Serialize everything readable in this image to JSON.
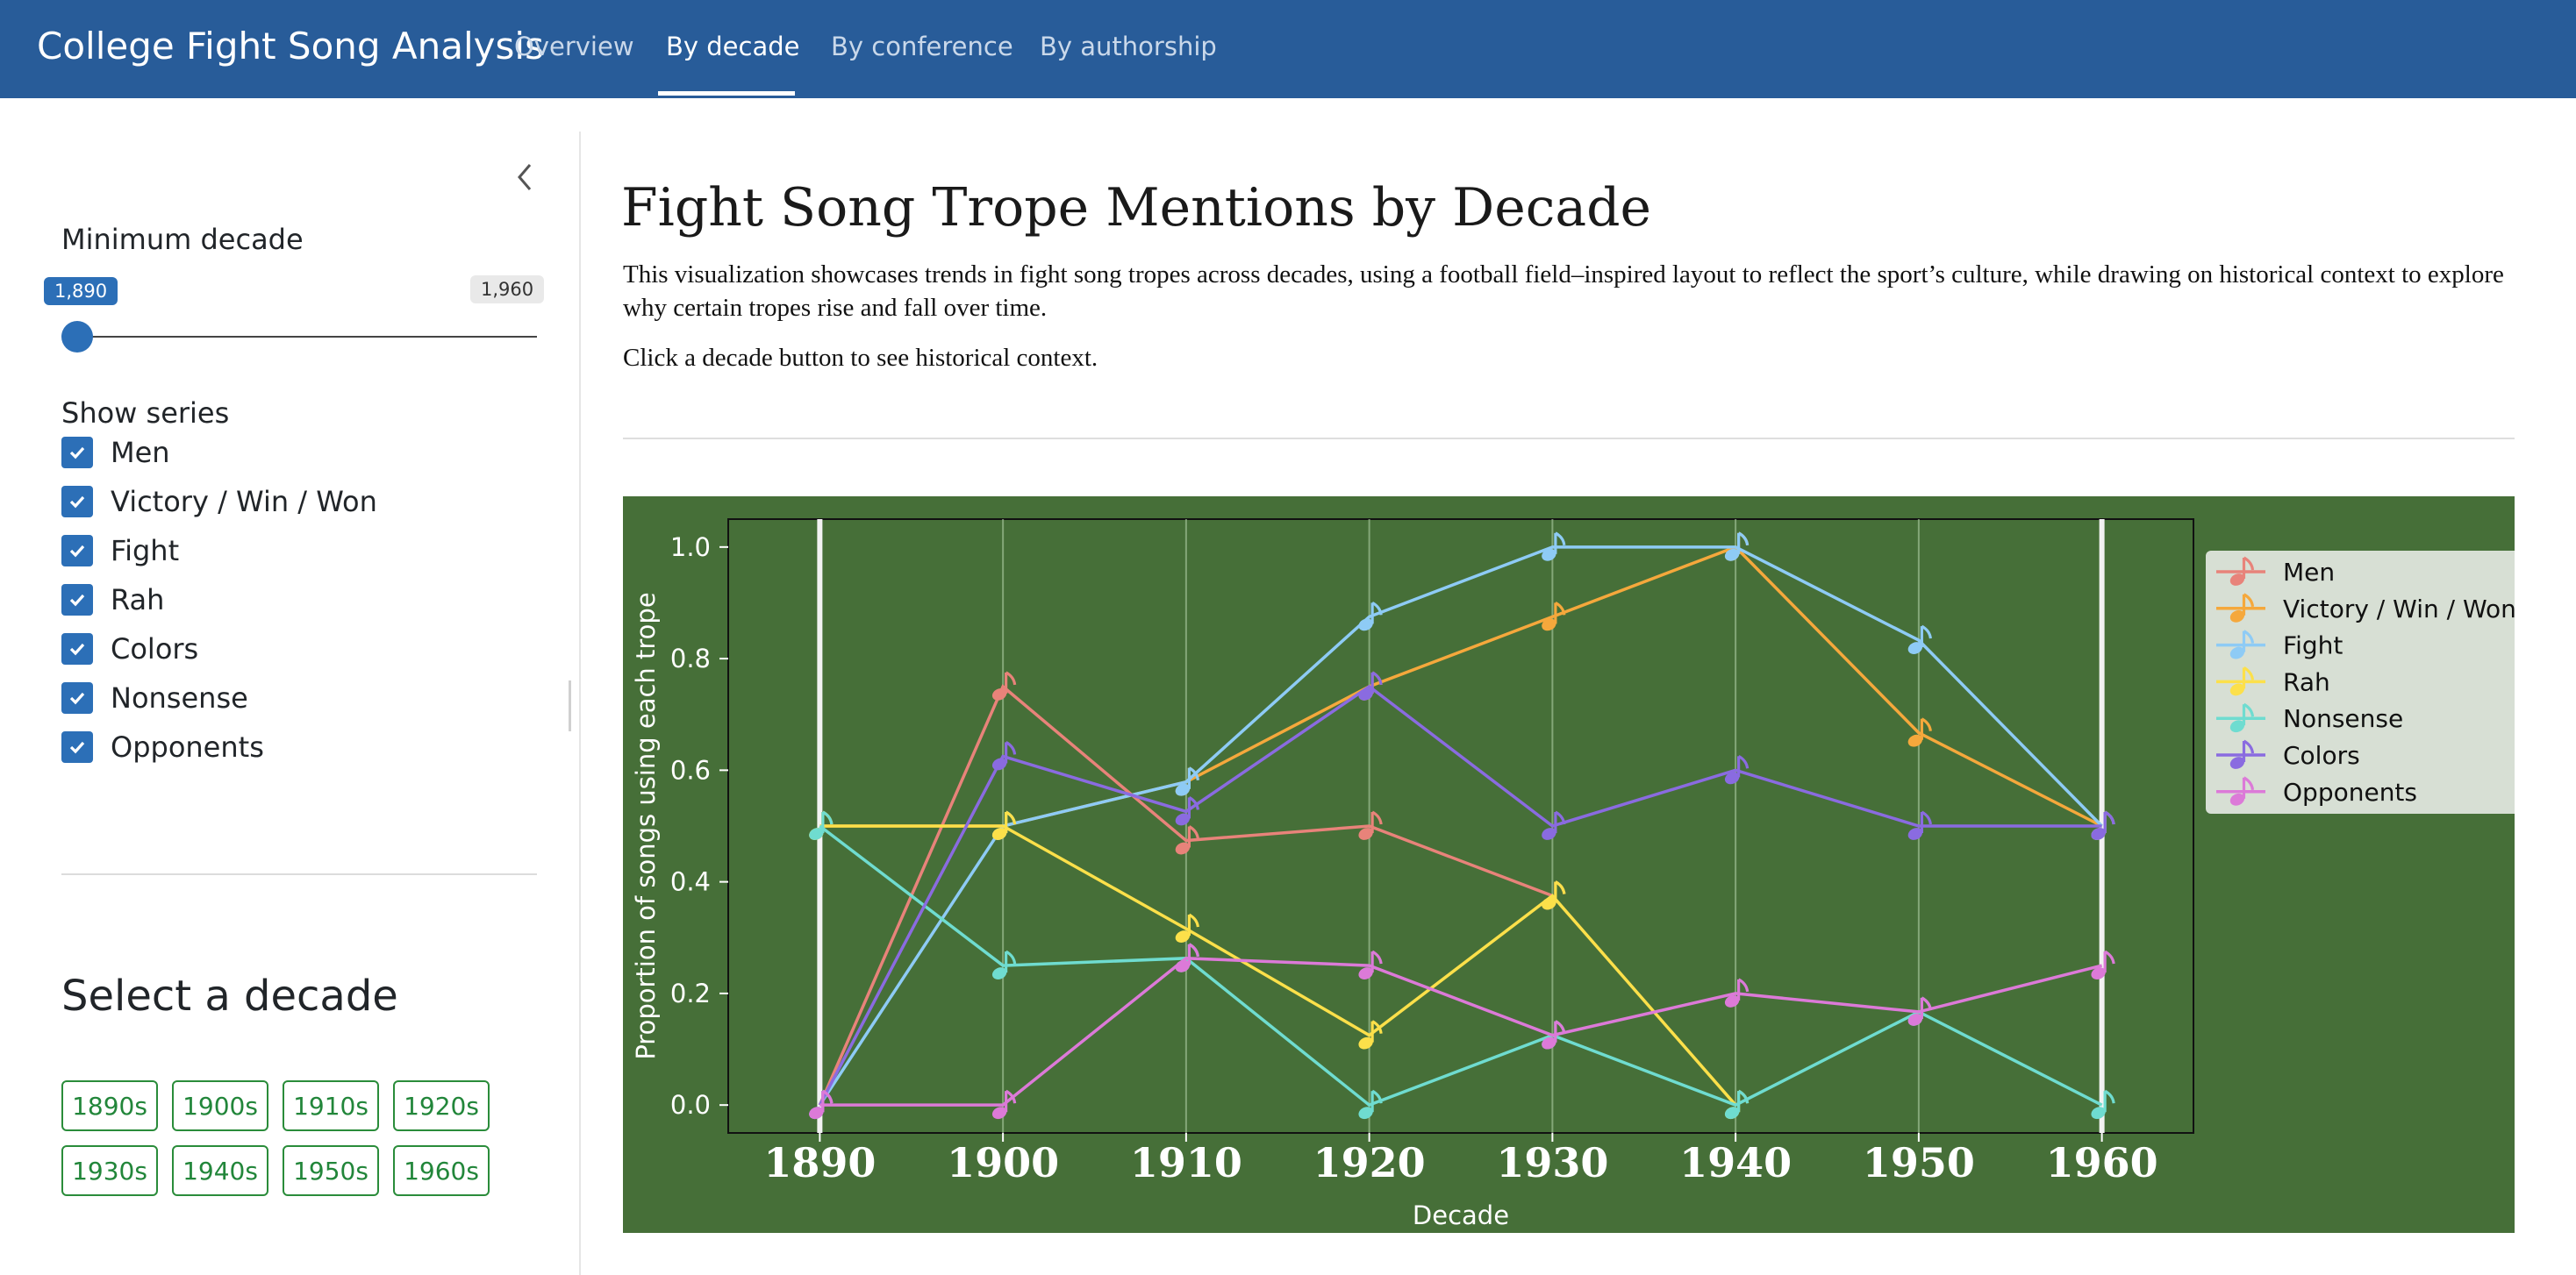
{
  "navbar": {
    "brand": "College Fight Song Analysis",
    "tabs": [
      {
        "label": "Overview"
      },
      {
        "label": "By decade"
      },
      {
        "label": "By conference"
      },
      {
        "label": "By authorship"
      }
    ],
    "active_tab": "By decade"
  },
  "sidebar": {
    "min_decade_label": "Minimum decade",
    "slider": {
      "value": "1,890",
      "max": "1,960"
    },
    "show_series_label": "Show series",
    "series": [
      {
        "label": "Men",
        "checked": true
      },
      {
        "label": "Victory / Win / Won",
        "checked": true
      },
      {
        "label": "Fight",
        "checked": true
      },
      {
        "label": "Rah",
        "checked": true
      },
      {
        "label": "Colors",
        "checked": true
      },
      {
        "label": "Nonsense",
        "checked": true
      },
      {
        "label": "Opponents",
        "checked": true
      }
    ],
    "select_decade_title": "Select a decade",
    "decade_buttons": [
      "1890s",
      "1900s",
      "1910s",
      "1920s",
      "1930s",
      "1940s",
      "1950s",
      "1960s"
    ]
  },
  "main": {
    "title": "Fight Song Trope Mentions by Decade",
    "description": "This visualization showcases trends in fight song tropes across decades, using a football field–inspired layout to reflect the sport’s culture, while drawing on historical context to explore why certain tropes rise and fall over time.",
    "hint": "Click a decade button to see historical context."
  },
  "colors": {
    "navbar": "#285c99",
    "field": "#466f38",
    "accent": "#2c6fb7",
    "button_green": "#22863a"
  },
  "chart_data": {
    "type": "line",
    "title": "",
    "xlabel": "Decade",
    "ylabel": "Proportion of songs using each trope",
    "x": [
      1890,
      1900,
      1910,
      1920,
      1930,
      1940,
      1950,
      1960
    ],
    "xlim": [
      1885,
      1965
    ],
    "ylim": [
      -0.05,
      1.05
    ],
    "yticks": [
      "0.0",
      "0.2",
      "0.4",
      "0.6",
      "0.8",
      "1.0"
    ],
    "xticks": [
      "1890",
      "1900",
      "1910",
      "1920",
      "1930",
      "1940",
      "1950",
      "1960"
    ],
    "grid": "vertical lines at each decade",
    "legend_placement": "right",
    "marker": "musical note",
    "series": [
      {
        "name": "Men",
        "color": "#e8837a",
        "values": [
          0.0,
          0.75,
          0.474,
          0.5,
          0.375,
          null,
          null,
          null
        ]
      },
      {
        "name": "Victory / Win / Won",
        "color": "#f5a83c",
        "values": [
          0.5,
          0.5,
          0.579,
          0.75,
          0.875,
          1.0,
          0.667,
          0.5
        ]
      },
      {
        "name": "Fight",
        "color": "#8ecbf5",
        "values": [
          0.0,
          0.5,
          0.579,
          0.875,
          1.0,
          1.0,
          0.833,
          0.5
        ]
      },
      {
        "name": "Rah",
        "color": "#fce04a",
        "values": [
          0.5,
          0.5,
          0.316,
          0.125,
          0.375,
          0.0,
          null,
          null
        ]
      },
      {
        "name": "Nonsense",
        "color": "#6fdcd0",
        "values": [
          0.5,
          0.25,
          0.263,
          0.0,
          0.125,
          0.0,
          0.167,
          0.0
        ]
      },
      {
        "name": "Colors",
        "color": "#8a6be0",
        "values": [
          0.0,
          0.625,
          0.526,
          0.75,
          0.5,
          0.6,
          0.5,
          0.5
        ]
      },
      {
        "name": "Opponents",
        "color": "#dc7ad8",
        "values": [
          0.0,
          0.0,
          0.263,
          0.25,
          0.125,
          0.2,
          0.167,
          0.25
        ]
      }
    ]
  }
}
